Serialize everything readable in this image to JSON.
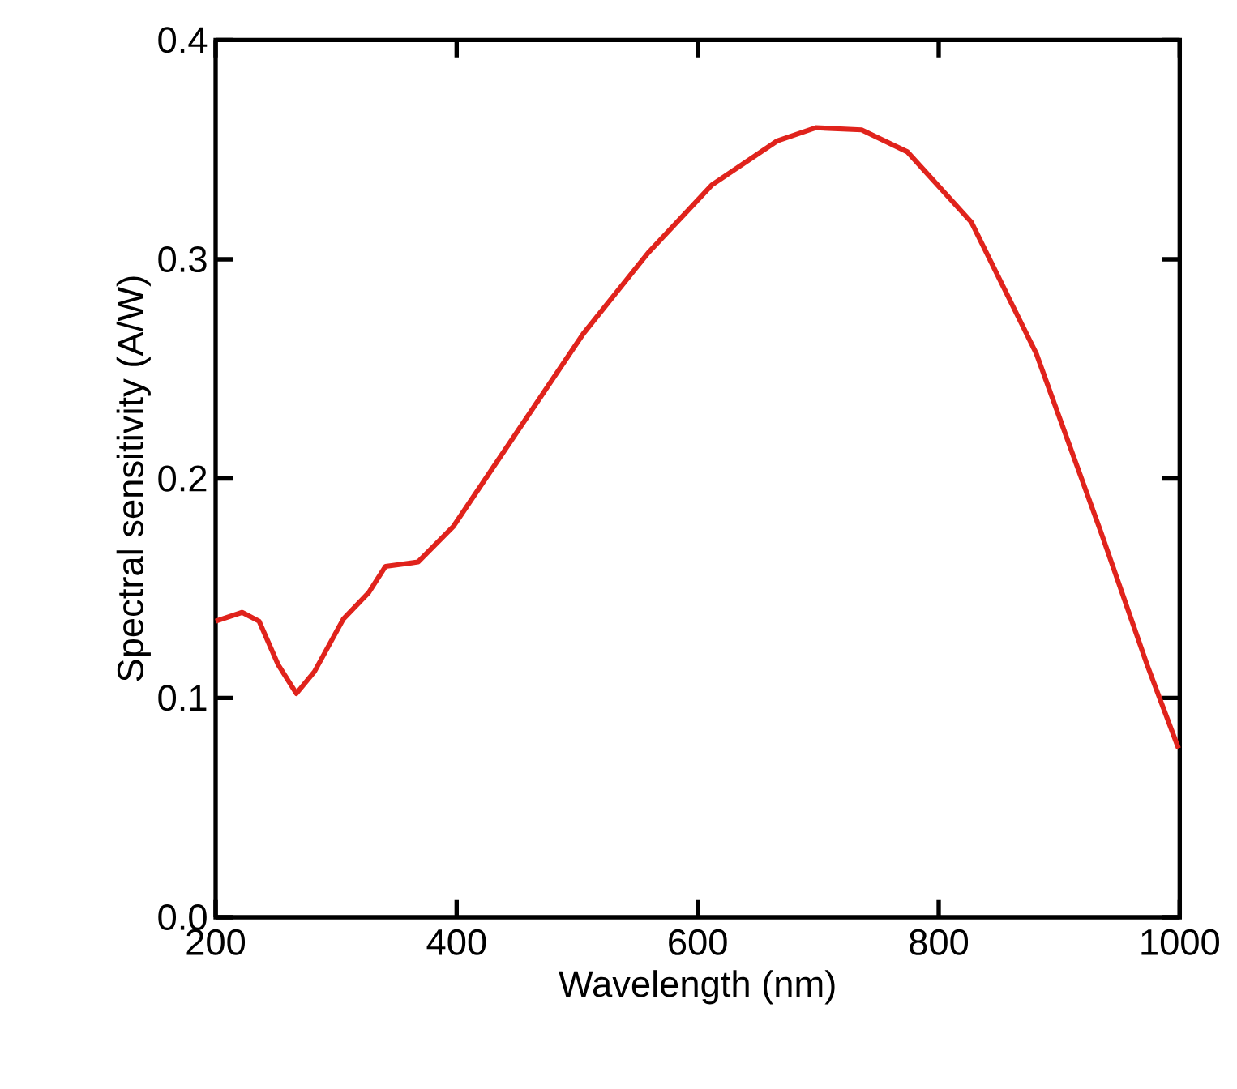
{
  "chart_data": {
    "type": "line",
    "xlabel": "Wavelength (nm)",
    "ylabel": "Spectral sensitivity (A/W)",
    "xlim": [
      200,
      1000
    ],
    "ylim": [
      0,
      0.4
    ],
    "xticks": [
      200,
      400,
      600,
      800,
      1000
    ],
    "yticks": [
      {
        "value": 0,
        "label": "0.0"
      },
      0.1,
      0.2,
      0.3,
      0.4
    ],
    "series": [
      {
        "color": "#e0231c",
        "x": [
          200,
          222,
          236,
          252,
          267,
          282,
          306,
          327,
          341,
          368,
          397,
          451,
          505,
          559,
          612,
          666,
          698,
          736,
          774,
          827,
          881,
          935,
          973,
          999
        ],
        "values": [
          0.135,
          0.139,
          0.135,
          0.115,
          0.102,
          0.112,
          0.136,
          0.148,
          0.16,
          0.162,
          0.178,
          0.222,
          0.266,
          0.303,
          0.334,
          0.354,
          0.36,
          0.359,
          0.349,
          0.317,
          0.257,
          0.175,
          0.115,
          0.077
        ]
      }
    ]
  }
}
